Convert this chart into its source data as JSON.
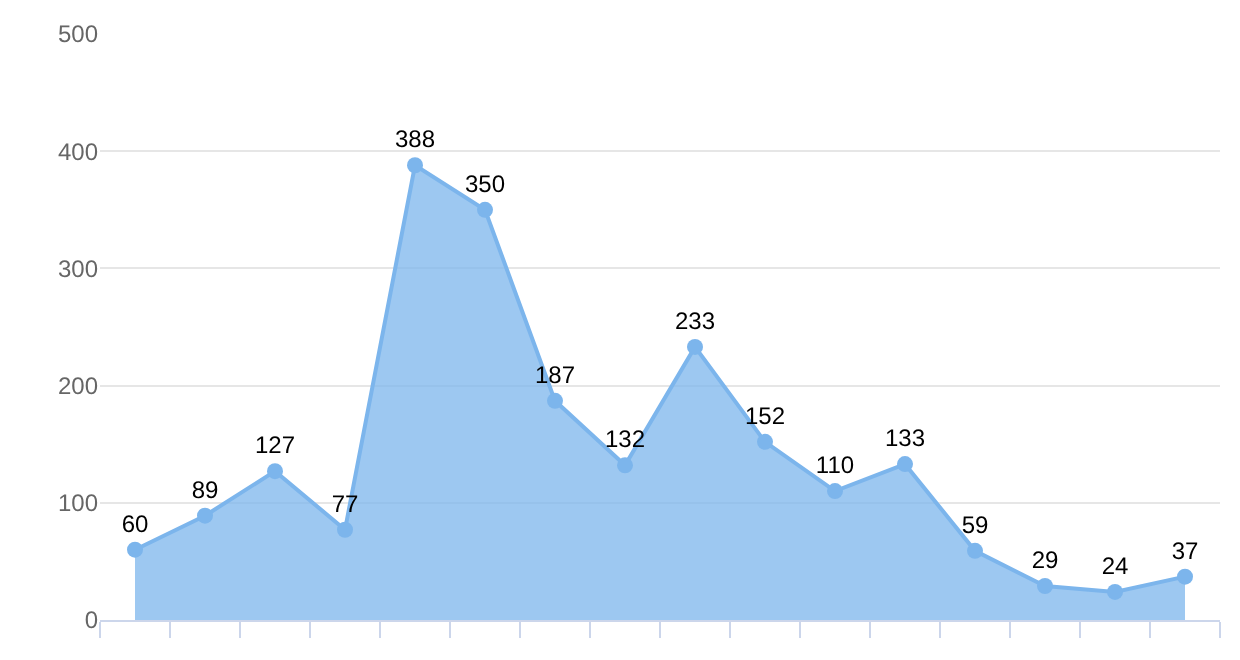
{
  "chart_data": {
    "type": "area",
    "categories": [
      null,
      null,
      null,
      null,
      null,
      null,
      null,
      null,
      null,
      null,
      null,
      null,
      null,
      null,
      null,
      null
    ],
    "series": [
      {
        "color": "#7cb5ec",
        "values": [
          60,
          89,
          127,
          77,
          388,
          350,
          187,
          132,
          233,
          152,
          110,
          133,
          59,
          29,
          24,
          37
        ]
      }
    ],
    "ylim": [
      0,
      500
    ],
    "yticks": [
      0,
      100,
      200,
      300,
      400,
      500
    ],
    "grid": "y",
    "marker": "circle",
    "data_labels": true,
    "legend": false
  }
}
